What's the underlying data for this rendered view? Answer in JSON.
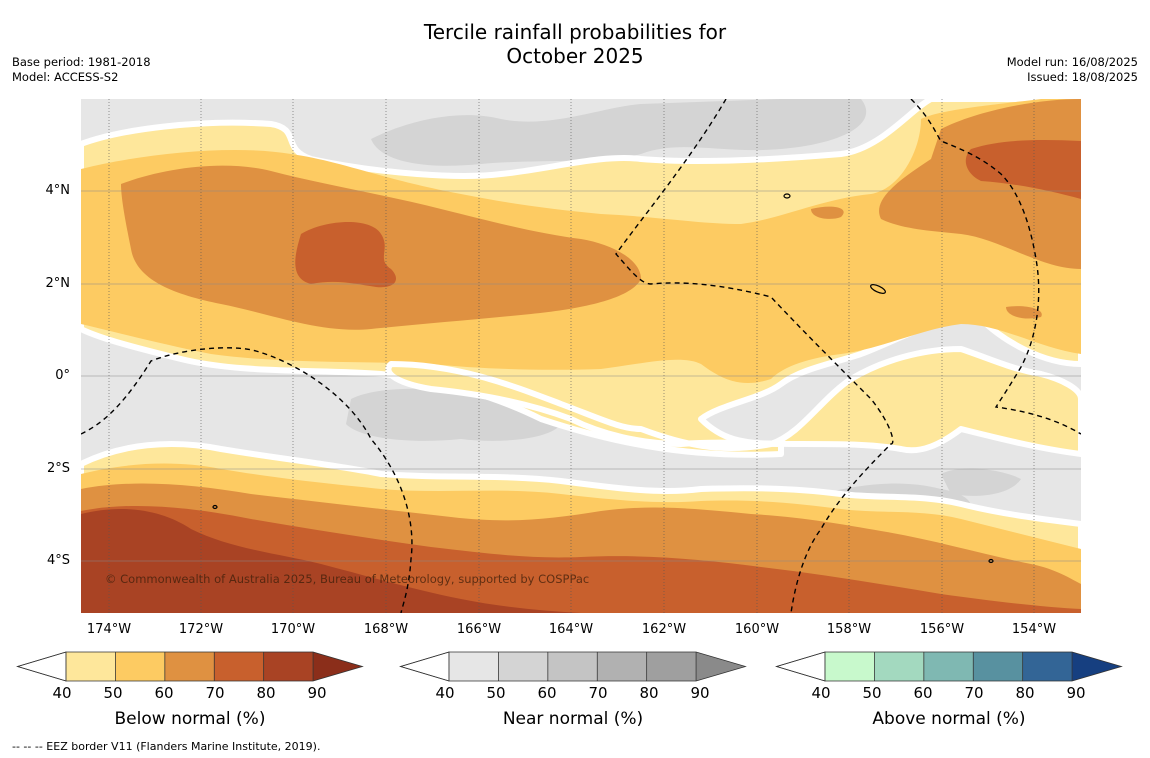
{
  "header": {
    "title_line1": "Tercile rainfall probabilities for",
    "title_line2": "October 2025",
    "base_period": "Base period: 1981-2018",
    "model": "Model: ACCESS-S2",
    "model_run": "Model run: 16/08/2025",
    "issued": "Issued: 18/08/2025"
  },
  "map": {
    "copyright": "© Commonwealth of Australia 2025, Bureau of Meteorology, supported by COSPPac",
    "lat_labels": [
      "4°N",
      "2°N",
      "0°",
      "2°S",
      "4°S"
    ],
    "lon_labels": [
      "174°W",
      "172°W",
      "170°W",
      "168°W",
      "166°W",
      "164°W",
      "162°W",
      "160°W",
      "158°W",
      "156°W",
      "154°W"
    ],
    "colors": {
      "below_normal": [
        "#fee79b",
        "#fdcb62",
        "#df9141",
        "#c8602d",
        "#a94324",
        "#8b2e1a"
      ],
      "near_normal": [
        "#e6e6e6",
        "#d4d4d4",
        "#c4c4c4",
        "#b1b1b1",
        "#9f9f9f",
        "#8a8a8a"
      ],
      "above_normal": [
        "#c8f9cc",
        "#a3d9bf",
        "#7fb8b2",
        "#5891a0",
        "#336596",
        "#163f80"
      ]
    }
  },
  "colorbars": {
    "ticks": [
      "40",
      "50",
      "60",
      "70",
      "80",
      "90"
    ],
    "below_label": "Below normal (%)",
    "near_label": "Near normal (%)",
    "above_label": "Above normal (%)"
  },
  "footnote": "--  --  -- EEZ border V11 (Flanders Marine Institute, 2019)."
}
